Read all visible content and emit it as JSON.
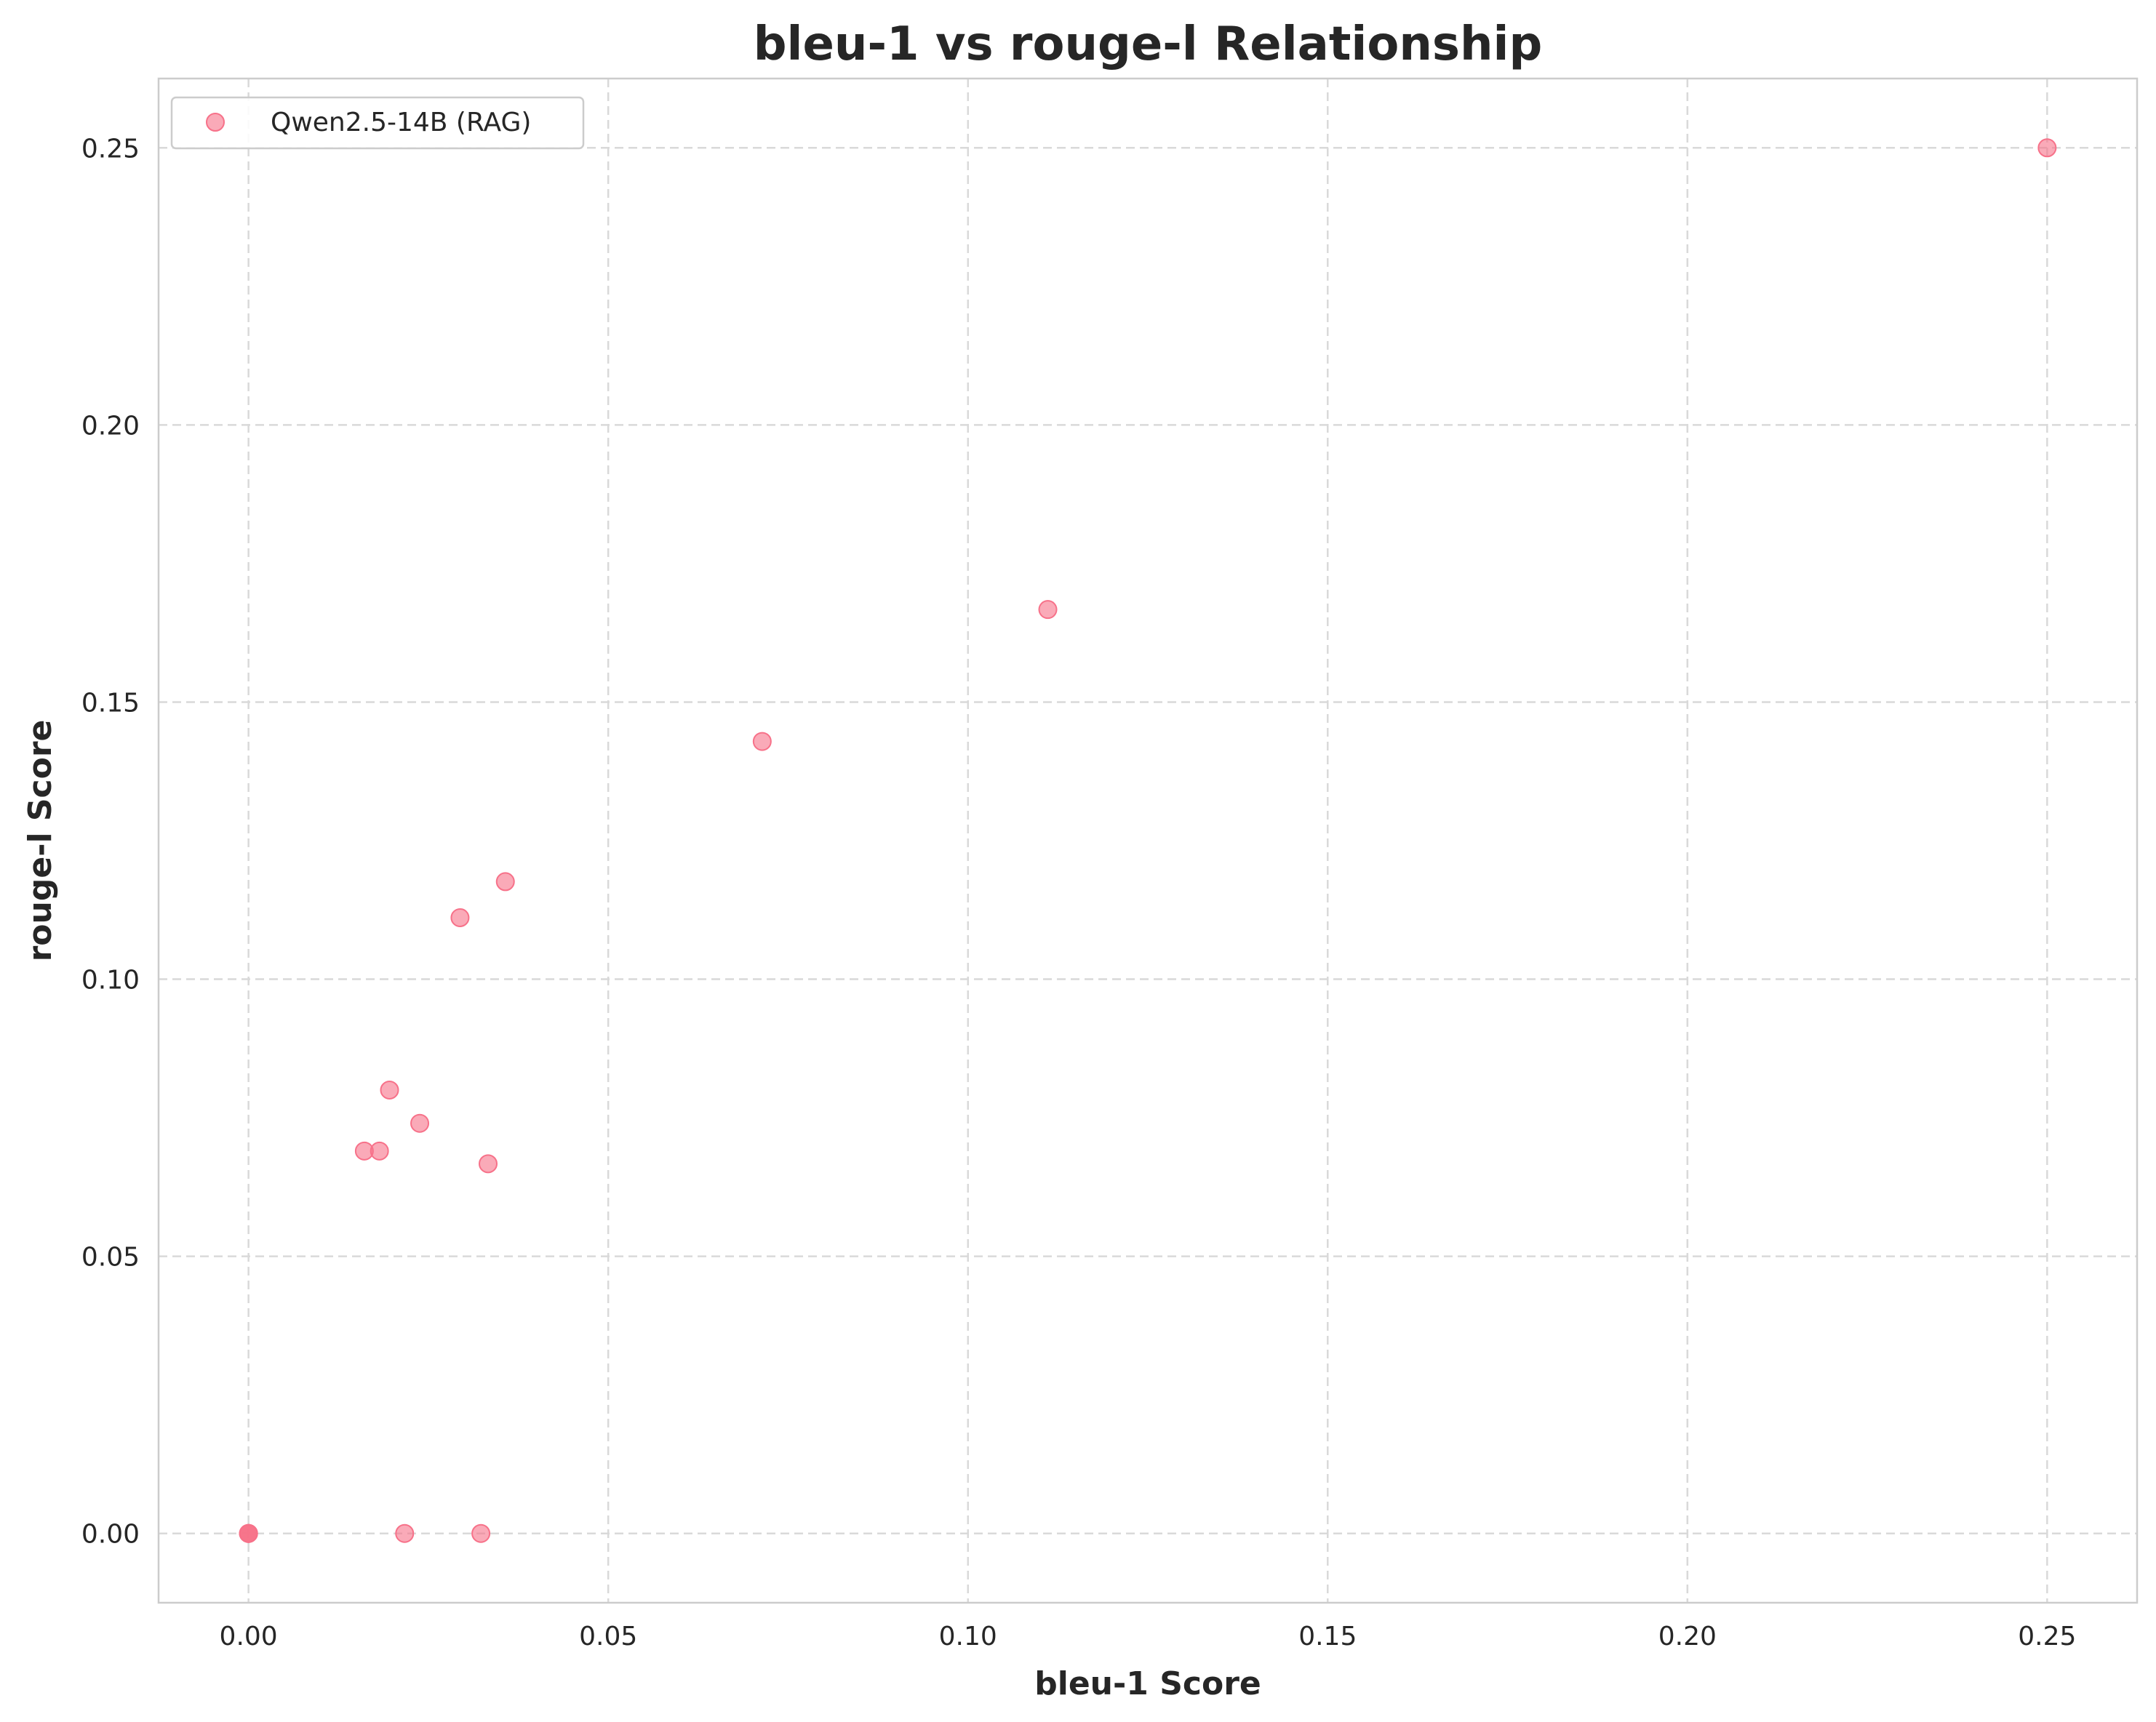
{
  "chart_data": {
    "type": "scatter",
    "title": "bleu-1 vs rouge-l Relationship",
    "xlabel": "bleu-1 Score",
    "ylabel": "rouge-l Score",
    "xlim": [
      -0.0125,
      0.2625
    ],
    "ylim": [
      -0.0125,
      0.2625
    ],
    "xticks": [
      0.0,
      0.05,
      0.1,
      0.15,
      0.2,
      0.25
    ],
    "xtick_labels": [
      "0.00",
      "0.05",
      "0.10",
      "0.15",
      "0.20",
      "0.25"
    ],
    "yticks": [
      0.0,
      0.05,
      0.1,
      0.15,
      0.2,
      0.25
    ],
    "ytick_labels": [
      "0.00",
      "0.05",
      "0.10",
      "0.15",
      "0.20",
      "0.25"
    ],
    "grid": true,
    "legend_position": "top-left",
    "series": [
      {
        "name": "Qwen2.5-14B (RAG)",
        "color": "#f77189",
        "x": [
          0.0,
          0.0,
          0.0,
          0.0,
          0.0217,
          0.0323,
          0.0161,
          0.0182,
          0.0196,
          0.0238,
          0.0333,
          0.0294,
          0.0357,
          0.0714,
          0.1111,
          0.25
        ],
        "y": [
          0.0,
          0.0,
          0.0,
          0.0,
          0.0,
          0.0,
          0.069,
          0.069,
          0.08,
          0.074,
          0.0667,
          0.1111,
          0.1176,
          0.1429,
          0.1667,
          0.25
        ]
      }
    ]
  }
}
